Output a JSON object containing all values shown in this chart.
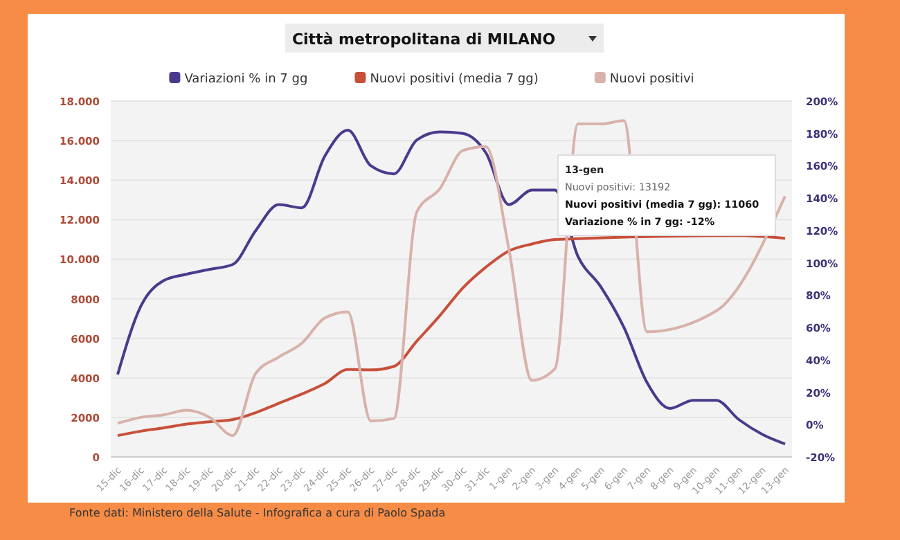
{
  "chart_data": {
    "type": "line",
    "title": "Città metropolitana di MILANO",
    "categories": [
      "15-dic",
      "16-dic",
      "17-dic",
      "18-dic",
      "19-dic",
      "20-dic",
      "21-dic",
      "22-dic",
      "23-dic",
      "24-dic",
      "25-dic",
      "26-dic",
      "27-dic",
      "28-dic",
      "29-dic",
      "30-dic",
      "31-dic",
      "1-gen",
      "2-gen",
      "3-gen",
      "4-gen",
      "5-gen",
      "6-gen",
      "7-gen",
      "8-gen",
      "9-gen",
      "10-gen",
      "11-gen",
      "12-gen",
      "13-gen"
    ],
    "series": [
      {
        "name": "Variazioni % in 7 gg",
        "color": "#4b3a8c",
        "axis": "y2",
        "values": [
          31,
          73,
          89,
          93,
          96,
          99,
          120,
          136,
          134,
          166,
          182,
          160,
          155,
          176,
          181,
          180,
          168,
          136,
          145,
          145,
          104,
          85,
          60,
          26,
          10,
          15,
          15,
          3,
          -6,
          -12
        ]
      },
      {
        "name": "Nuovi positivi (media 7 gg)",
        "color": "#c8503a",
        "values": [
          1080,
          1300,
          1470,
          1660,
          1780,
          1890,
          2240,
          2710,
          3180,
          3710,
          4420,
          4400,
          4580,
          5860,
          7150,
          8550,
          9600,
          10420,
          10770,
          11000,
          null,
          null,
          null,
          null,
          null,
          null,
          null,
          11200,
          11150,
          11060
        ]
      },
      {
        "name": "Nuovi positivi",
        "color": "#d8b2aa",
        "values": [
          1700,
          2000,
          2130,
          2360,
          2000,
          1080,
          4230,
          5050,
          5750,
          7030,
          7340,
          1820,
          1940,
          12400,
          13570,
          15500,
          15700,
          10500,
          3870,
          4460,
          16840,
          16840,
          17010,
          6330,
          null,
          null,
          7380,
          null,
          null,
          13192
        ]
      }
    ],
    "ylim": [
      0,
      18000
    ],
    "yticks": [
      0,
      {
        "value": 2000,
        "label": "2000"
      },
      {
        "value": 4000,
        "label": "4000"
      },
      {
        "value": 6000,
        "label": "6000"
      },
      {
        "value": 8000,
        "label": "8000"
      },
      {
        "value": 10000,
        "label": "10.000"
      },
      {
        "value": 12000,
        "label": "12.000"
      },
      {
        "value": 14000,
        "label": "14.000"
      },
      {
        "value": 16000,
        "label": "16.000"
      },
      {
        "value": 18000,
        "label": "18.000"
      }
    ],
    "y2lim": [
      -20,
      200
    ],
    "y2ticks": [
      {
        "value": -20,
        "label": "-20%"
      },
      {
        "value": 0,
        "label": "0%"
      },
      {
        "value": 20,
        "label": "20%"
      },
      {
        "value": 40,
        "label": "40%"
      },
      {
        "value": 60,
        "label": "60%"
      },
      {
        "value": 80,
        "label": "80%"
      },
      {
        "value": 100,
        "label": "100%"
      },
      {
        "value": 120,
        "label": "120%"
      },
      {
        "value": 140,
        "label": "140%"
      },
      {
        "value": 160,
        "label": "160%"
      },
      {
        "value": 180,
        "label": "180%"
      },
      {
        "value": 200,
        "label": "200%"
      }
    ],
    "grid": "y",
    "legend": "top",
    "marker": "none",
    "line_style": "solid",
    "annotations": [
      "13-gen",
      "Nuovi positivi: 13192",
      "Nuovi positivi (media 7 gg): 11060",
      "Variazione % in 7 gg: -12%",
      "Fonte dati: Ministero della Salute - Infografica a cura di Paolo Spada"
    ]
  }
}
